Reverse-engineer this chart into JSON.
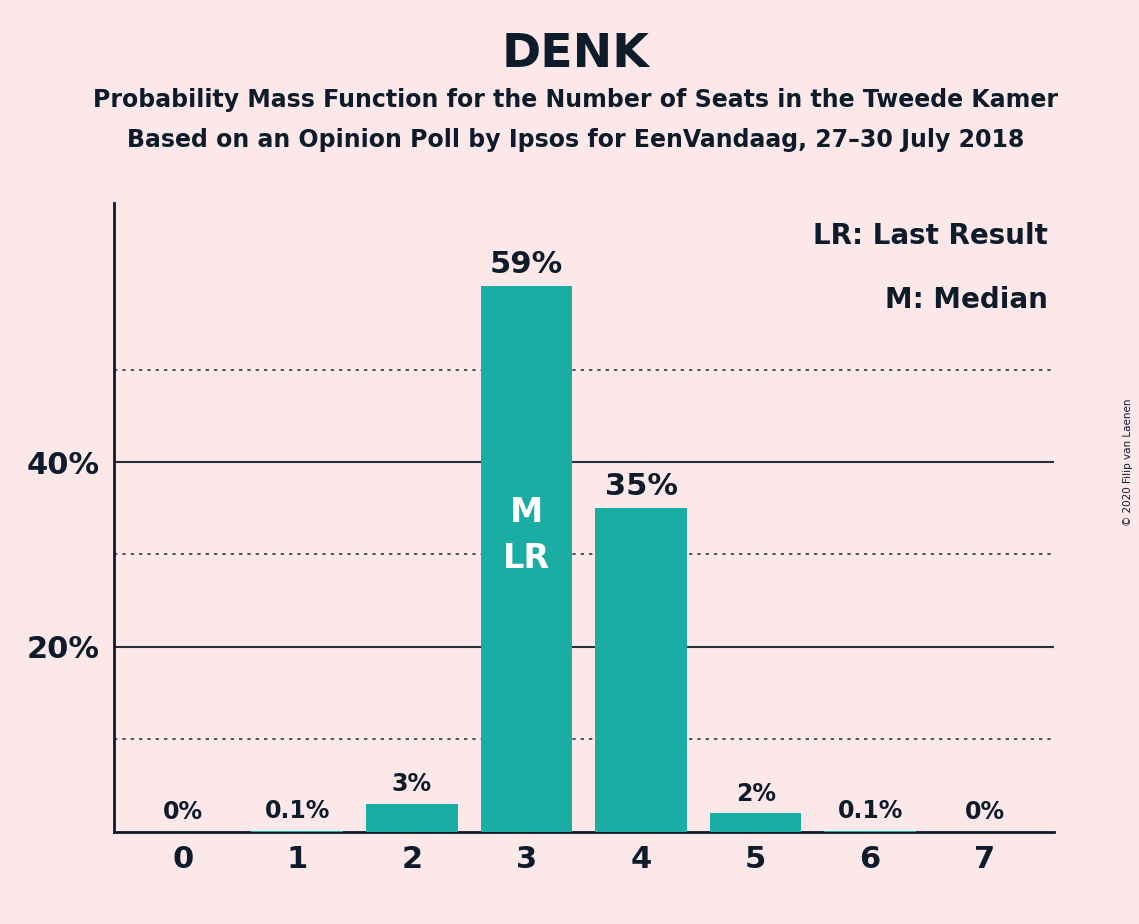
{
  "title": "DENK",
  "subtitle1": "Probability Mass Function for the Number of Seats in the Tweede Kamer",
  "subtitle2": "Based on an Opinion Poll by Ipsos for EenVandaag, 27–30 July 2018",
  "copyright": "© 2020 Filip van Laenen",
  "legend_lr": "LR: Last Result",
  "legend_m": "M: Median",
  "categories": [
    0,
    1,
    2,
    3,
    4,
    5,
    6,
    7
  ],
  "values": [
    0.0,
    0.1,
    3.0,
    59.0,
    35.0,
    2.0,
    0.1,
    0.0
  ],
  "labels": [
    "0%",
    "0.1%",
    "3%",
    "59%",
    "35%",
    "2%",
    "0.1%",
    "0%"
  ],
  "bar_color": "#1aada3",
  "background_color": "#fce8e8",
  "text_color": "#0d1b2a",
  "median_bar": 3,
  "lr_bar": 3,
  "ylim": [
    0,
    68
  ],
  "dotted_yticks": [
    10,
    30,
    50
  ],
  "solid_yticks": [
    20,
    40
  ],
  "title_fontsize": 34,
  "subtitle_fontsize": 17,
  "label_fontsize_large": 22,
  "label_fontsize_small": 17,
  "tick_fontsize": 20,
  "legend_fontsize": 20,
  "ml_fontsize": 24
}
